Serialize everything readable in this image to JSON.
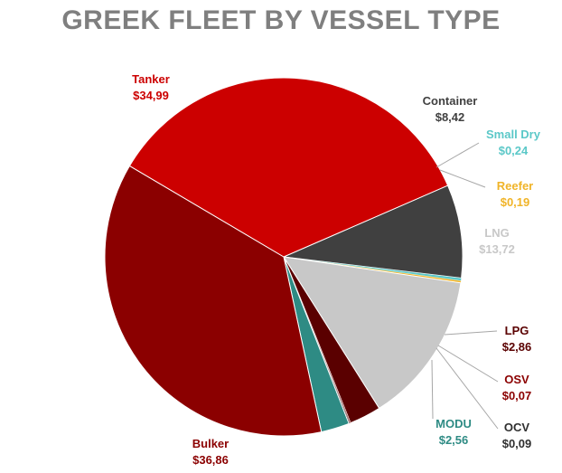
{
  "chart_data": {
    "type": "pie",
    "title": "GREEK FLEET BY VESSEL TYPE",
    "slices": [
      {
        "name": "Container",
        "value": 8.42,
        "value_label": "$8,42",
        "color": "#404040",
        "label_color": "#404040"
      },
      {
        "name": "Small Dry",
        "value": 0.24,
        "value_label": "$0,24",
        "color": "#5bc8c8",
        "label_color": "#5bc8c8"
      },
      {
        "name": "Reefer",
        "value": 0.19,
        "value_label": "$0,19",
        "color": "#f0b428",
        "label_color": "#f0b428"
      },
      {
        "name": "LNG",
        "value": 13.72,
        "value_label": "$13,72",
        "color": "#c8c8c8",
        "label_color": "#c8c8c8"
      },
      {
        "name": "LPG",
        "value": 2.86,
        "value_label": "$2,86",
        "color": "#5a0000",
        "label_color": "#5a0000"
      },
      {
        "name": "OSV",
        "value": 0.07,
        "value_label": "$0,07",
        "color": "#8b0000",
        "label_color": "#8b0000"
      },
      {
        "name": "OCV",
        "value": 0.09,
        "value_label": "$0,09",
        "color": "#2f2f2f",
        "label_color": "#2f2f2f"
      },
      {
        "name": "MODU",
        "value": 2.56,
        "value_label": "$2,56",
        "color": "#2e8b84",
        "label_color": "#2e8b84"
      },
      {
        "name": "Bulker",
        "value": 36.86,
        "value_label": "$36,86",
        "color": "#8b0000",
        "label_color": "#8b0000"
      },
      {
        "name": "Tanker",
        "value": 34.99,
        "value_label": "$34,99",
        "color": "#cc0000",
        "label_color": "#cc0000"
      }
    ]
  }
}
